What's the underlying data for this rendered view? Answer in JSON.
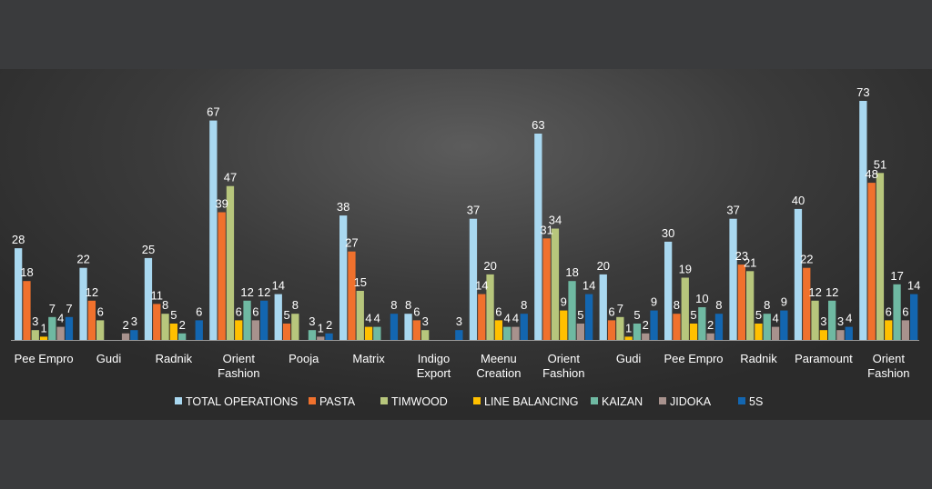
{
  "chart_data": {
    "type": "bar",
    "title": "",
    "xlabel": "",
    "ylabel": "",
    "ylim": [
      0,
      73
    ],
    "grid": false,
    "legend_position": "bottom",
    "categories": [
      [
        "Pee Empro"
      ],
      [
        "Gudi"
      ],
      [
        "Radnik"
      ],
      [
        "Orient",
        "Fashion"
      ],
      [
        "Pooja"
      ],
      [
        "Matrix"
      ],
      [
        "Indigo",
        "Export"
      ],
      [
        "Meenu",
        "Creation"
      ],
      [
        "Orient",
        "Fashion"
      ],
      [
        "Gudi"
      ],
      [
        "Pee Empro"
      ],
      [
        "Radnik"
      ],
      [
        "Paramount"
      ],
      [
        "Orient",
        "Fashion"
      ]
    ],
    "series": [
      {
        "name": "TOTAL OPERATIONS",
        "color": "#a9d8f0",
        "values": [
          28,
          22,
          25,
          67,
          14,
          38,
          8,
          37,
          63,
          20,
          30,
          37,
          40,
          73
        ]
      },
      {
        "name": "PASTA",
        "color": "#f0712d",
        "values": [
          18,
          12,
          11,
          39,
          5,
          27,
          6,
          14,
          31,
          6,
          8,
          23,
          22,
          48
        ]
      },
      {
        "name": "TIMWOOD",
        "color": "#b7c67c",
        "values": [
          3,
          6,
          8,
          47,
          8,
          15,
          3,
          20,
          34,
          7,
          19,
          21,
          12,
          51
        ]
      },
      {
        "name": "LINE BALANCING",
        "color": "#ffc000",
        "values": [
          1,
          null,
          5,
          6,
          null,
          4,
          null,
          6,
          9,
          1,
          5,
          5,
          3,
          6
        ]
      },
      {
        "name": "KAIZAN",
        "color": "#6fb9a2",
        "values": [
          7,
          null,
          2,
          12,
          3,
          4,
          null,
          4,
          18,
          5,
          10,
          8,
          12,
          17
        ]
      },
      {
        "name": "JIDOKA",
        "color": "#a8928d",
        "values": [
          4,
          2,
          null,
          6,
          1,
          null,
          null,
          4,
          5,
          2,
          2,
          4,
          3,
          6
        ]
      },
      {
        "name": "5S",
        "color": "#1366b0",
        "values": [
          7,
          3,
          6,
          12,
          2,
          8,
          3,
          8,
          14,
          9,
          8,
          9,
          4,
          14
        ]
      }
    ]
  }
}
